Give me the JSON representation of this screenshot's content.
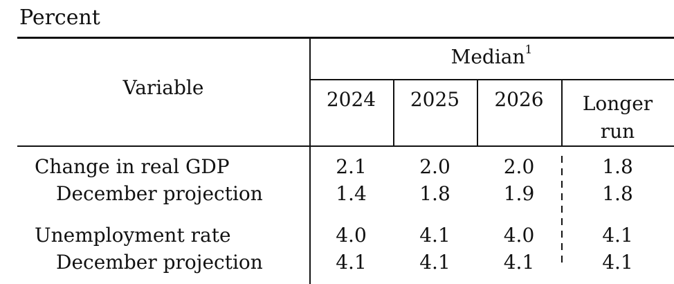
{
  "caption": "Percent",
  "header": {
    "variable": "Variable",
    "median": "Median",
    "median_note": "1",
    "years": [
      "2024",
      "2025",
      "2026"
    ],
    "longer_run_line1": "Longer",
    "longer_run_line2": "run"
  },
  "rows": [
    {
      "label": "Change in real GDP",
      "values": [
        "2.1",
        "2.0",
        "2.0",
        "1.8"
      ]
    },
    {
      "label": "December projection",
      "values": [
        "1.4",
        "1.8",
        "1.9",
        "1.8"
      ]
    },
    {
      "label": "Unemployment rate",
      "values": [
        "4.0",
        "4.1",
        "4.0",
        "4.1"
      ]
    },
    {
      "label": "December projection",
      "values": [
        "4.1",
        "4.1",
        "4.1",
        "4.1"
      ]
    }
  ]
}
